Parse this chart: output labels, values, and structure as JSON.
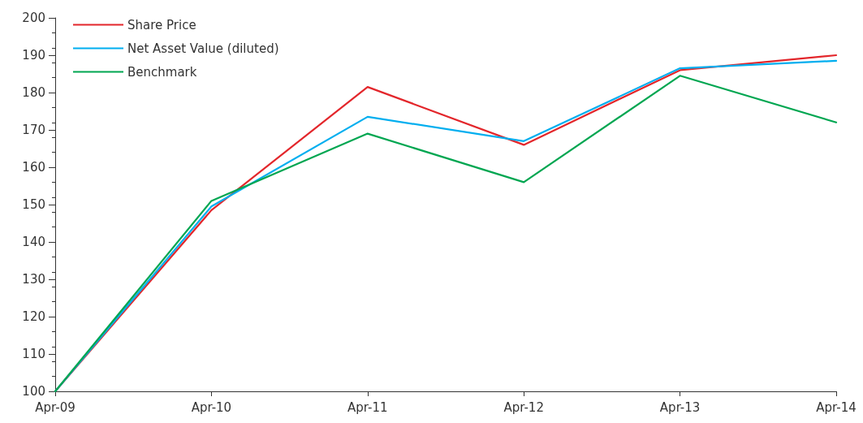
{
  "chart_data": {
    "type": "line",
    "categories": [
      "Apr-09",
      "Apr-10",
      "Apr-11",
      "Apr-12",
      "Apr-13",
      "Apr-14"
    ],
    "series": [
      {
        "name": "Share Price",
        "color": "#e3262b",
        "values": [
          100,
          148.5,
          181.5,
          166,
          186,
          190
        ]
      },
      {
        "name": "Net Asset Value (diluted)",
        "color": "#00aeef",
        "values": [
          100,
          149.5,
          173.5,
          167,
          186.5,
          188.5
        ]
      },
      {
        "name": "Benchmark",
        "color": "#00a651",
        "values": [
          100,
          151,
          169,
          156,
          184.5,
          172
        ]
      }
    ],
    "ylim": [
      100,
      200
    ],
    "yticks": [
      100,
      110,
      120,
      130,
      140,
      150,
      160,
      170,
      180,
      190,
      200
    ],
    "grid": false,
    "legend": "top left",
    "marker": "none",
    "line_style": "solid"
  }
}
